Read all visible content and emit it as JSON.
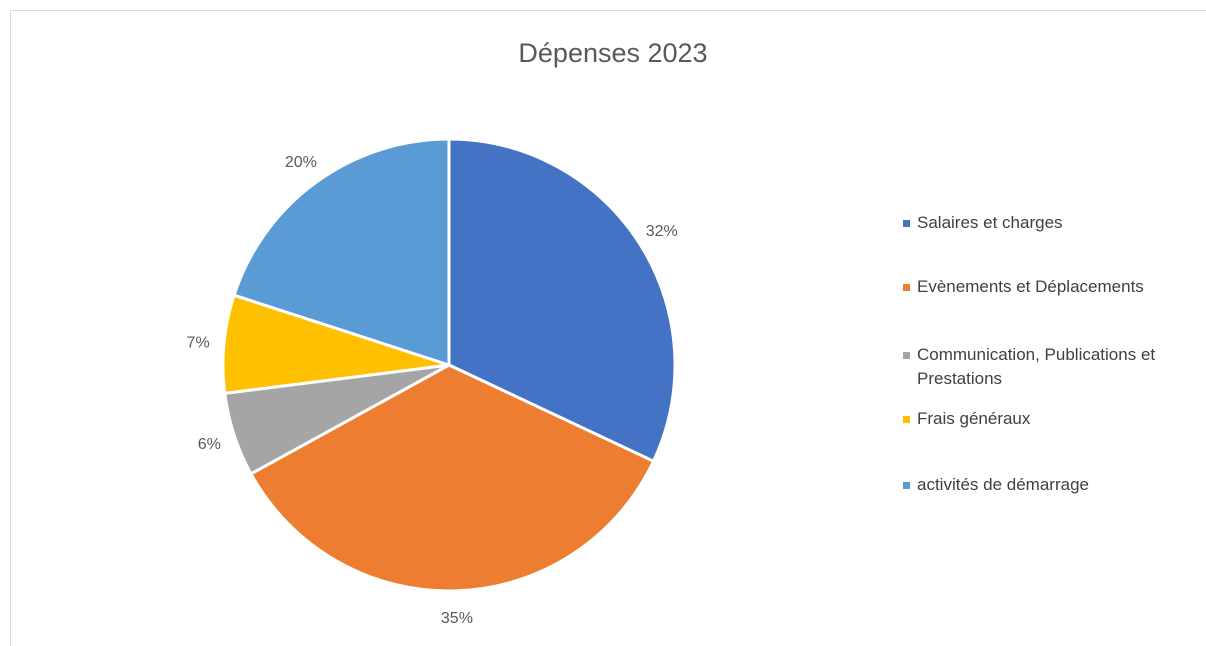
{
  "chart_data": {
    "type": "pie",
    "title": "Dépenses 2023",
    "categories": [
      "Salaires et charges",
      "Evènements et Déplacements",
      "Communication, Publications et Prestations",
      "Frais généraux",
      "activités de démarrage"
    ],
    "values": [
      32,
      35,
      6,
      7,
      20
    ],
    "labels": [
      "32%",
      "35%",
      "6%",
      "7%",
      "20%"
    ],
    "colors": [
      "#4472C4",
      "#ED7D31",
      "#A5A5A5",
      "#FFC000",
      "#5B9BD5"
    ],
    "legend_position": "right"
  }
}
